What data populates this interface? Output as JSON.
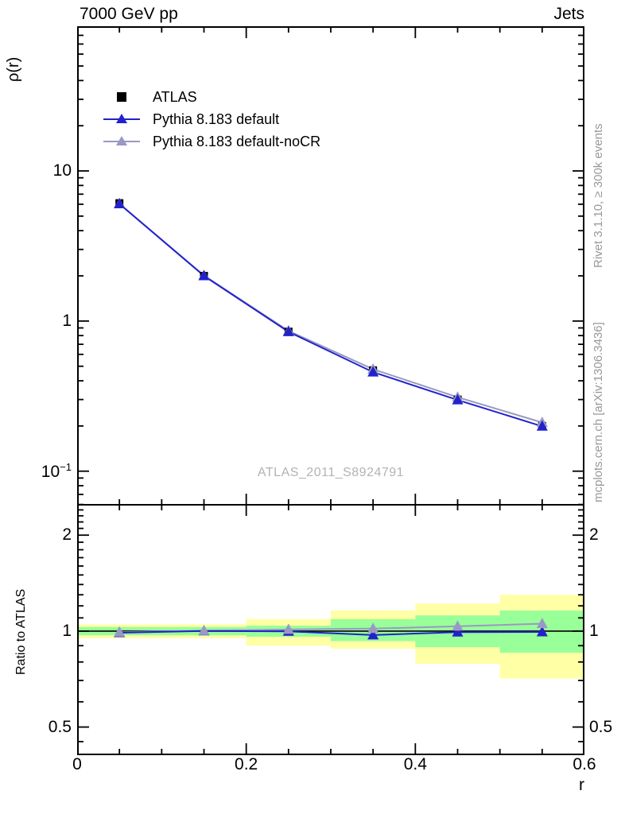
{
  "chart_data": {
    "type": "line",
    "title_left": "7000 GeV pp",
    "title_right": "Jets",
    "ylabel": "ρ(r)",
    "ratio_label": "Ratio to ATLAS",
    "xlabel": "r",
    "watermark": "ATLAS_2011_S8924791",
    "side_text_top": "Rivet 3.1.10, ≥ 300k events",
    "side_text_bottom": "mcplots.cern.ch [arXiv:1306.3436]",
    "x": [
      0.05,
      0.15,
      0.25,
      0.35,
      0.45,
      0.55
    ],
    "series": [
      {
        "name": "ATLAS",
        "marker": "square",
        "color": "#000000",
        "values": [
          6.1,
          2.0,
          0.85,
          0.47,
          0.3,
          0.2
        ]
      },
      {
        "name": "Pythia 8.183 default",
        "marker": "triangle",
        "color": "#2222cc",
        "values": [
          6.03,
          2.0,
          0.848,
          0.457,
          0.298,
          0.199
        ],
        "ratio": [
          0.988,
          1.001,
          0.998,
          0.972,
          0.992,
          0.994
        ]
      },
      {
        "name": "Pythia 8.183 default-noCR",
        "marker": "triangle",
        "color": "#9999c4",
        "values": [
          6.05,
          2.01,
          0.86,
          0.478,
          0.311,
          0.211
        ],
        "ratio": [
          0.992,
          1.003,
          1.012,
          1.018,
          1.035,
          1.055
        ]
      }
    ],
    "ratio_bands": [
      {
        "x0": 0.0,
        "x1": 0.1,
        "outer": [
          0.95,
          1.05
        ],
        "inner": [
          0.97,
          1.03
        ]
      },
      {
        "x0": 0.1,
        "x1": 0.2,
        "outer": [
          0.95,
          1.05
        ],
        "inner": [
          0.97,
          1.03
        ]
      },
      {
        "x0": 0.2,
        "x1": 0.3,
        "outer": [
          0.9,
          1.09
        ],
        "inner": [
          0.96,
          1.04
        ]
      },
      {
        "x0": 0.3,
        "x1": 0.4,
        "outer": [
          0.88,
          1.16
        ],
        "inner": [
          0.93,
          1.09
        ]
      },
      {
        "x0": 0.4,
        "x1": 0.5,
        "outer": [
          0.79,
          1.22
        ],
        "inner": [
          0.89,
          1.12
        ]
      },
      {
        "x0": 0.5,
        "x1": 0.6,
        "outer": [
          0.71,
          1.3
        ],
        "inner": [
          0.855,
          1.16
        ]
      }
    ],
    "band_colors": {
      "outer": "#ffffa6",
      "inner": "#99ff99"
    },
    "main_axis": {
      "scale": "log",
      "ymin": 0.059,
      "ymax": 92,
      "yticks": [
        {
          "v": 10,
          "label": "10"
        },
        {
          "v": 1,
          "label": "1"
        },
        {
          "v": 0.1,
          "label": "10",
          "sup": "−1"
        }
      ]
    },
    "ratio_axis": {
      "scale": "log",
      "ymin": 0.408,
      "ymax": 2.505,
      "yticks": [
        {
          "v": 2,
          "label": "2"
        },
        {
          "v": 1,
          "label": "1"
        },
        {
          "v": 0.5,
          "label": "0.5"
        }
      ],
      "yminor": [
        0.45,
        0.6,
        0.7,
        0.8,
        0.9,
        1.1,
        1.2,
        1.3,
        1.4,
        1.5,
        1.6,
        1.7,
        1.8,
        1.9,
        2.1,
        2.2,
        2.3,
        2.4
      ]
    },
    "x_axis": {
      "xmin": 0,
      "xmax": 0.6,
      "minor_step": 0.05,
      "xticks": [
        {
          "v": 0,
          "label": "0"
        },
        {
          "v": 0.2,
          "label": "0.2"
        },
        {
          "v": 0.4,
          "label": "0.4"
        },
        {
          "v": 0.6,
          "label": "0.6"
        }
      ]
    }
  }
}
